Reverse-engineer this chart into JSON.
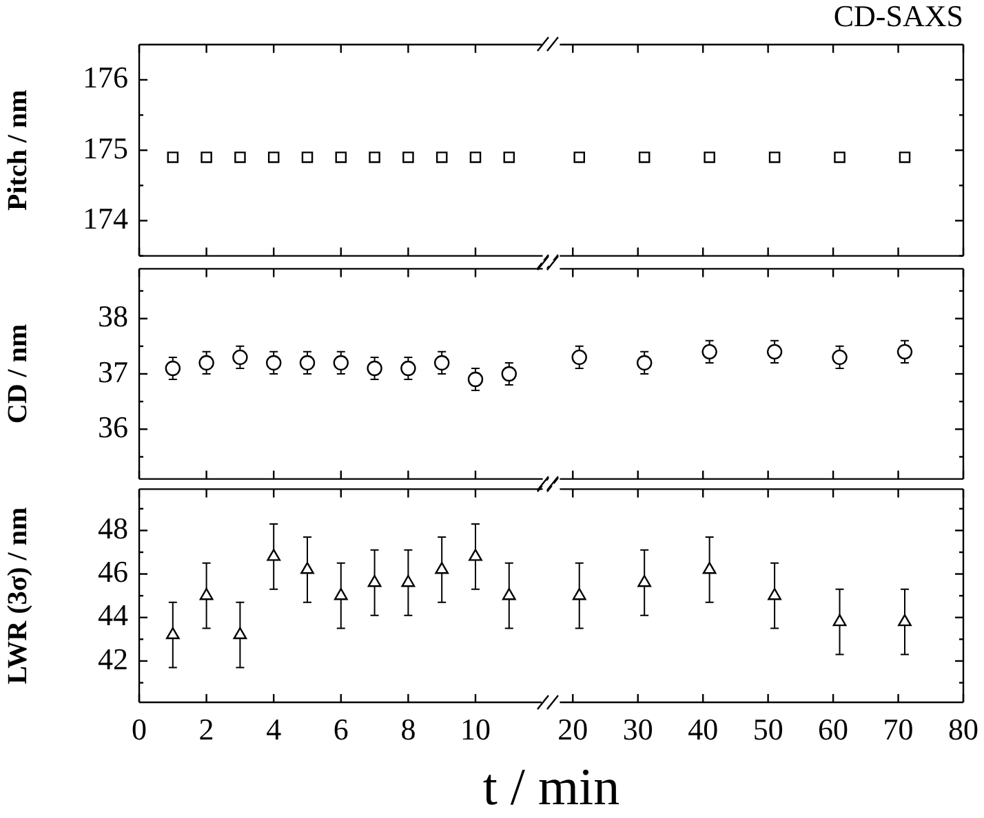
{
  "chart_data": [
    {
      "type": "scatter",
      "ylabel": "Pitch / nm",
      "marker": "square",
      "tick_labels": "y",
      "xlim": [
        0,
        12
      ],
      "xticks": [
        0,
        2,
        4,
        6,
        8,
        10
      ],
      "ylim": [
        173.5,
        176.5
      ],
      "yticks": [
        {
          "value": 173.5,
          "label": null
        },
        174,
        {
          "value": 174.5,
          "label": null
        },
        175,
        {
          "value": 175.5,
          "label": null
        },
        176
      ],
      "x": [
        1,
        2,
        3,
        4,
        5,
        6,
        7,
        8,
        9,
        10,
        11
      ],
      "series": [
        {
          "color": "#000000",
          "values": [
            174.9,
            174.9,
            174.9,
            174.9,
            174.9,
            174.9,
            174.9,
            174.9,
            174.9,
            174.9,
            174.9
          ]
        }
      ]
    },
    {
      "type": "scatter",
      "title": "CD-SAXS",
      "marker": "square",
      "tick_labels": false,
      "xlim": [
        18,
        80
      ],
      "xticks": [
        20,
        30,
        40,
        50,
        60,
        70,
        80
      ],
      "ylim": [
        173.5,
        176.5
      ],
      "yticks": [
        {
          "value": 173.5,
          "label": null
        },
        174,
        {
          "value": 174.5,
          "label": null
        },
        175,
        {
          "value": 175.5,
          "label": null
        },
        176
      ],
      "x": [
        21,
        31,
        41,
        51,
        61,
        71
      ],
      "series": [
        {
          "color": "#000000",
          "values": [
            174.9,
            174.9,
            174.9,
            174.9,
            174.9,
            174.9
          ]
        }
      ]
    },
    {
      "type": "scatter",
      "ylabel": "CD / nm",
      "marker": "circle",
      "tick_labels": "y",
      "xlim": [
        0,
        12
      ],
      "xticks": [
        0,
        2,
        4,
        6,
        8,
        10
      ],
      "ylim": [
        35.1,
        38.9
      ],
      "yticks": [
        {
          "value": 35.5,
          "label": null
        },
        36,
        {
          "value": 36.5,
          "label": null
        },
        37,
        {
          "value": 37.5,
          "label": null
        },
        38,
        {
          "value": 38.5,
          "label": null
        }
      ],
      "x": [
        1,
        2,
        3,
        4,
        5,
        6,
        7,
        8,
        9,
        10,
        11
      ],
      "series": [
        {
          "color": "#000000",
          "values": [
            37.1,
            37.2,
            37.3,
            37.2,
            37.2,
            37.2,
            37.1,
            37.1,
            37.2,
            36.9,
            37.0
          ],
          "errors": [
            0.2,
            0.2,
            0.2,
            0.2,
            0.2,
            0.2,
            0.2,
            0.2,
            0.2,
            0.2,
            0.2
          ]
        }
      ]
    },
    {
      "type": "scatter",
      "marker": "circle",
      "tick_labels": false,
      "xlim": [
        18,
        80
      ],
      "xticks": [
        20,
        30,
        40,
        50,
        60,
        70,
        80
      ],
      "ylim": [
        35.1,
        38.9
      ],
      "yticks": [
        {
          "value": 35.5,
          "label": null
        },
        36,
        {
          "value": 36.5,
          "label": null
        },
        37,
        {
          "value": 37.5,
          "label": null
        },
        38,
        {
          "value": 38.5,
          "label": null
        }
      ],
      "x": [
        21,
        31,
        41,
        51,
        61,
        71
      ],
      "series": [
        {
          "color": "#000000",
          "values": [
            37.3,
            37.2,
            37.4,
            37.4,
            37.3,
            37.4
          ],
          "errors": [
            0.2,
            0.2,
            0.2,
            0.2,
            0.2,
            0.2
          ]
        }
      ]
    },
    {
      "type": "scatter",
      "ylabel": "LWR (3σ) / nm",
      "xlabel": "t / min",
      "marker": "triangle",
      "xlim": [
        0,
        12
      ],
      "xticks": [
        0,
        2,
        4,
        6,
        8,
        10
      ],
      "ylim": [
        40.1,
        49.9
      ],
      "yticks": [
        {
          "value": 41,
          "label": null
        },
        42,
        {
          "value": 43,
          "label": null
        },
        44,
        {
          "value": 45,
          "label": null
        },
        46,
        {
          "value": 47,
          "label": null
        },
        48,
        {
          "value": 49,
          "label": null
        }
      ],
      "x": [
        1,
        2,
        3,
        4,
        5,
        6,
        7,
        8,
        9,
        10,
        11
      ],
      "series": [
        {
          "color": "#000000",
          "values": [
            43.2,
            45.0,
            43.2,
            46.8,
            46.2,
            45.0,
            45.6,
            45.6,
            46.2,
            46.8,
            45.0
          ],
          "errors": [
            1.5,
            1.5,
            1.5,
            1.5,
            1.5,
            1.5,
            1.5,
            1.5,
            1.5,
            1.5,
            1.5
          ]
        }
      ]
    },
    {
      "type": "scatter",
      "marker": "triangle",
      "tick_labels": "x",
      "xlim": [
        18,
        80
      ],
      "xticks": [
        20,
        30,
        40,
        50,
        60,
        70,
        80
      ],
      "ylim": [
        40.1,
        49.9
      ],
      "yticks": [
        {
          "value": 41,
          "label": null
        },
        42,
        {
          "value": 43,
          "label": null
        },
        44,
        {
          "value": 45,
          "label": null
        },
        46,
        {
          "value": 47,
          "label": null
        },
        48,
        {
          "value": 49,
          "label": null
        }
      ],
      "x": [
        21,
        31,
        41,
        51,
        61,
        71
      ],
      "series": [
        {
          "color": "#000000",
          "values": [
            45.0,
            45.6,
            46.2,
            45.0,
            43.8,
            43.8
          ],
          "errors": [
            1.5,
            1.5,
            1.5,
            1.5,
            1.5,
            1.5
          ]
        }
      ]
    }
  ]
}
